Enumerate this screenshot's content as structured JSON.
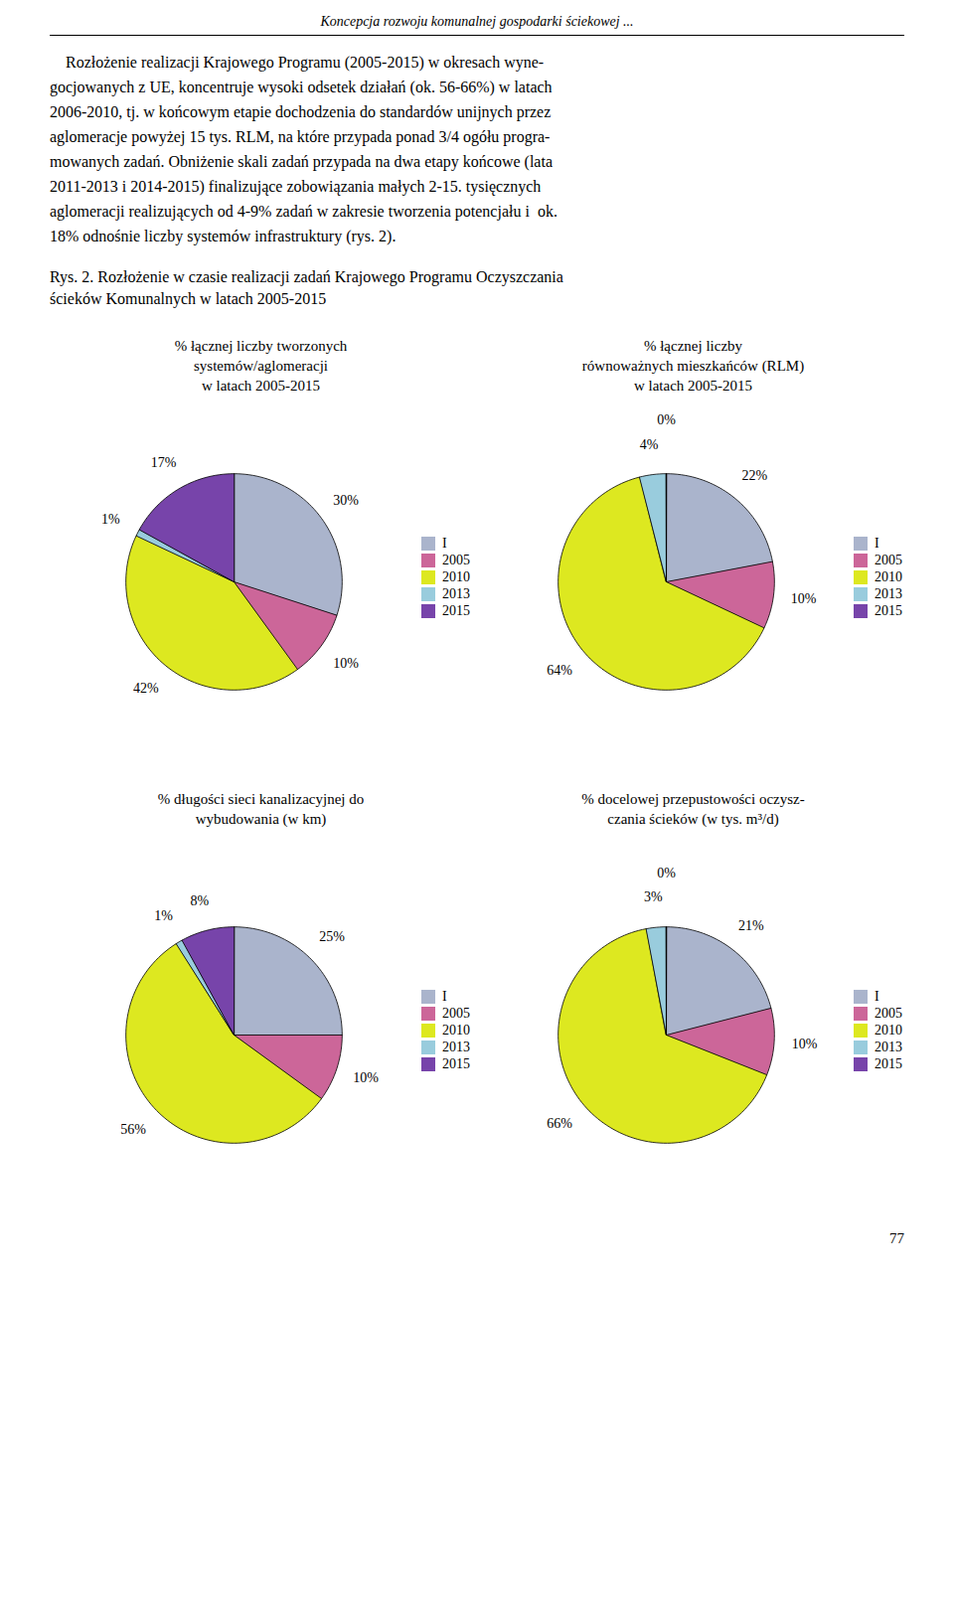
{
  "header": "Koncepcja rozwoju komunalnej gospodarki ściekowej ...",
  "body": [
    "    Rozłożenie realizacji Krajowego Programu (2005-2015) w okresach wyne-",
    "gocjowanych z UE, koncentruje wysoki odsetek działań (ok. 56-66%) w latach",
    "2006-2010, tj. w końcowym etapie dochodzenia do standardów unijnych przez",
    "aglomeracje powyżej 15 tys. RLM, na które przypada ponad 3/4 ogółu progra-",
    "mowanych zadań. Obniżenie skali zadań przypada na dwa etapy końcowe (lata",
    "2011-2013 i 2014-2015) finalizujące zobowiązania małych 2-15. tysięcznych",
    "aglomeracji realizujących od 4-9% zadań w zakresie tworzenia potencjału i  ok.",
    "18% odnośnie liczby systemów infrastruktury (rys. 2)."
  ],
  "caption": [
    "Rys. 2. Rozłożenie w czasie realizacji zadań Krajowego Programu Oczyszczania",
    "ścieków Komunalnych w latach 2005-2015"
  ],
  "page_number": "77",
  "chart_data": [
    {
      "type": "pie",
      "title": "% łącznej liczby tworzonych\nsystemów/aglomeracji\nw latach 2005-2015",
      "categories": [
        "I",
        "2005",
        "2010",
        "2013",
        "2015"
      ],
      "values": [
        30,
        10,
        42,
        1,
        17
      ],
      "value_labels": [
        "30%",
        "10%",
        "42%",
        "1%",
        "17%"
      ],
      "colors": [
        "#aab4cc",
        "#cc6699",
        "#dde820",
        "#99ccdd",
        "#7744aa"
      ],
      "data_labels": true,
      "legend": "right"
    },
    {
      "type": "pie",
      "title": "% łącznej liczby\nrównoważnych mieszkańców (RLM)\nw latach 2005-2015",
      "categories": [
        "I",
        "2005",
        "2010",
        "2013",
        "2015"
      ],
      "values": [
        22,
        10,
        64,
        4,
        0
      ],
      "value_labels": [
        "22%",
        "10%",
        "64%",
        "4%",
        "0%"
      ],
      "colors": [
        "#aab4cc",
        "#cc6699",
        "#dde820",
        "#99ccdd",
        "#7744aa"
      ],
      "data_labels": true,
      "legend": "right"
    },
    {
      "type": "pie",
      "title": "% długości sieci kanalizacyjnej do\nwybudowania (w km)",
      "categories": [
        "I",
        "2005",
        "2010",
        "2013",
        "2015"
      ],
      "values": [
        25,
        10,
        56,
        1,
        8
      ],
      "value_labels": [
        "25%",
        "10%",
        "56%",
        "1%",
        "8%"
      ],
      "colors": [
        "#aab4cc",
        "#cc6699",
        "#dde820",
        "#99ccdd",
        "#7744aa"
      ],
      "data_labels": true,
      "legend": "right"
    },
    {
      "type": "pie",
      "title": "% docelowej przepustowości oczysz-\nczania ścieków (w tys. m³/d)",
      "categories": [
        "I",
        "2005",
        "2010",
        "2013",
        "2015"
      ],
      "values": [
        21,
        10,
        66,
        3,
        0
      ],
      "value_labels": [
        "21%",
        "10%",
        "66%",
        "3%",
        "0%"
      ],
      "colors": [
        "#aab4cc",
        "#cc6699",
        "#dde820",
        "#99ccdd",
        "#7744aa"
      ],
      "data_labels": true,
      "legend": "right"
    }
  ]
}
